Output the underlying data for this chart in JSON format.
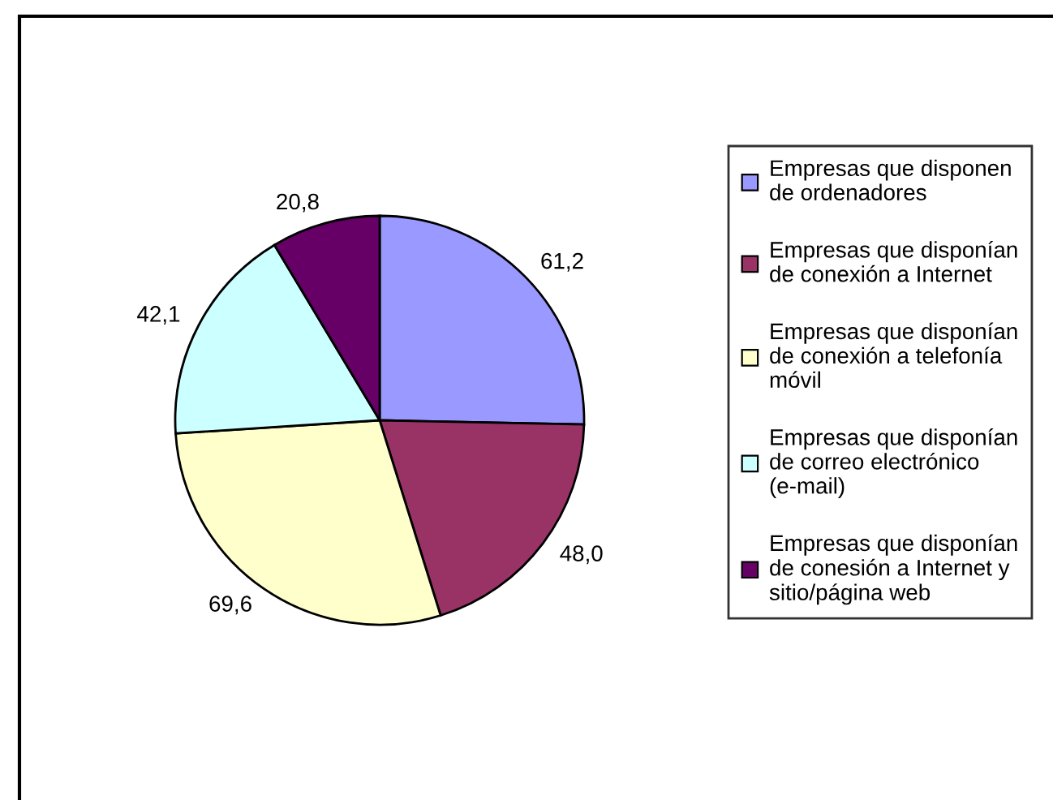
{
  "chart_data": {
    "type": "pie",
    "categories": [
      "Empresas que disponen de ordenadores",
      "Empresas que disponían de conexión a Internet",
      "Empresas que disponían de conexión a telefonía móvil",
      "Empresas que disponían de correo electrónico (e-mail)",
      "Empresas que disponían de conesión a Internet y sitio/página web"
    ],
    "values": [
      61.2,
      48.0,
      69.6,
      42.1,
      20.8
    ],
    "value_labels": [
      "61,2",
      "48,0",
      "69,6",
      "42,1",
      "20,8"
    ],
    "colors": [
      "#9999ff",
      "#993366",
      "#ffffcc",
      "#ccffff",
      "#660066"
    ],
    "legend": "right"
  }
}
